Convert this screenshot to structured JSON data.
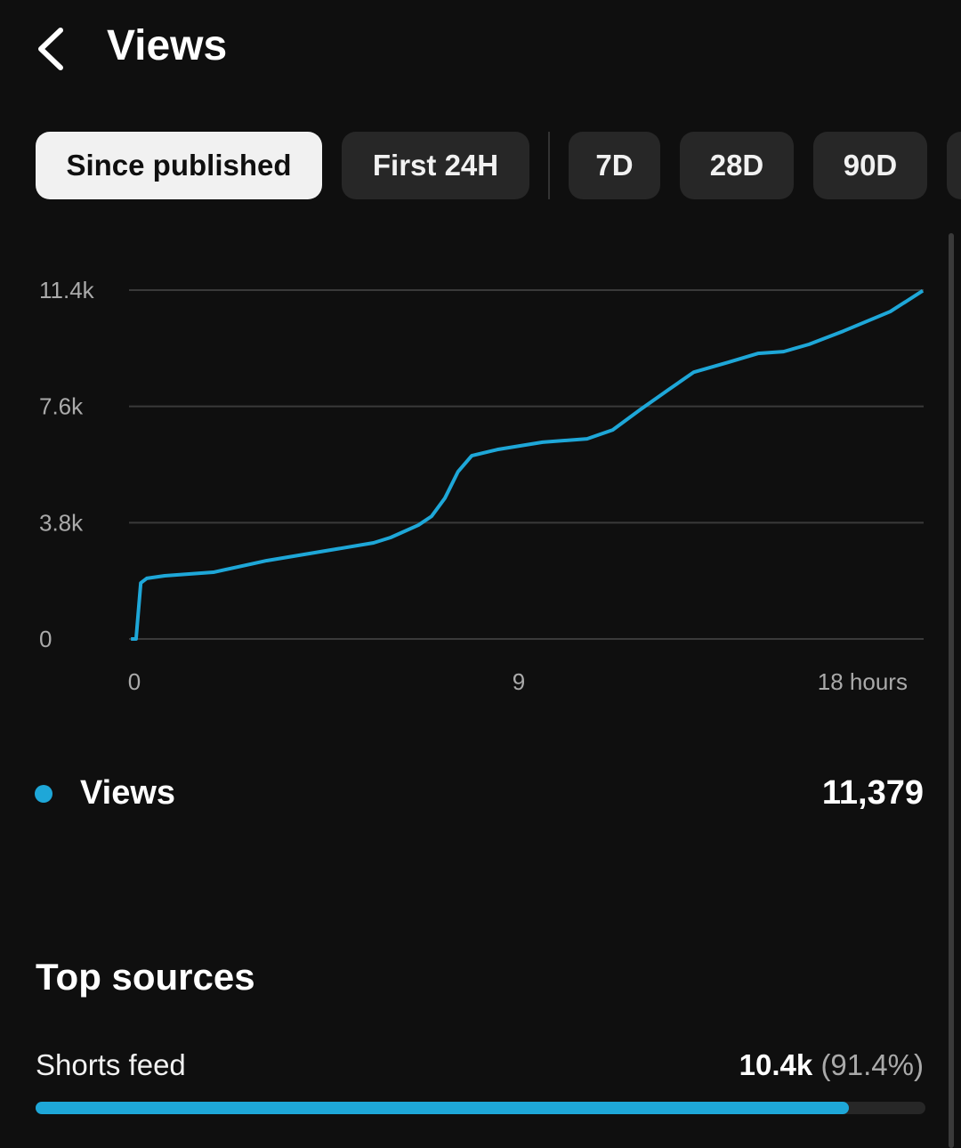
{
  "header": {
    "title": "Views"
  },
  "tabs": [
    "Since published",
    "First 24H",
    "7D",
    "28D",
    "90D"
  ],
  "chart_data": {
    "type": "line",
    "x": [
      -0.08,
      0.04,
      0.15,
      0.29,
      0.71,
      1.85,
      3.1,
      4.35,
      5.6,
      6.0,
      6.65,
      6.96,
      7.27,
      7.58,
      7.9,
      8.5,
      9.56,
      10.6,
      11.2,
      11.85,
      12.5,
      13.1,
      13.9,
      14.6,
      15.2,
      15.8,
      16.6,
      17.7,
      18.46
    ],
    "series": [
      {
        "name": "Views",
        "color": "#1ea7d8",
        "values": [
          0,
          0,
          1830,
          1980,
          2065,
          2180,
          2560,
          2850,
          3140,
          3315,
          3720,
          4010,
          4600,
          5470,
          5990,
          6190,
          6430,
          6540,
          6830,
          7500,
          8140,
          8720,
          9040,
          9330,
          9390,
          9630,
          10060,
          10700,
          11379
        ]
      }
    ],
    "xlim": [
      -0.125,
      18.48
    ],
    "xticks": [
      0,
      9,
      {
        "value": 18,
        "label": "18 hours"
      }
    ],
    "ylim": [
      0,
      11400
    ],
    "yticks": [
      0,
      {
        "value": 3800,
        "label": "3.8k"
      },
      {
        "value": 7600,
        "label": "7.6k"
      },
      {
        "value": 11400,
        "label": "11.4k"
      }
    ],
    "grid": true
  },
  "summary": {
    "value": "11,379"
  },
  "top_sources": {
    "title": "Top sources",
    "items": [
      {
        "name": "Shorts feed",
        "value_label": "10.4k",
        "share": 91.4,
        "share_label": "(91.4%)"
      }
    ]
  }
}
